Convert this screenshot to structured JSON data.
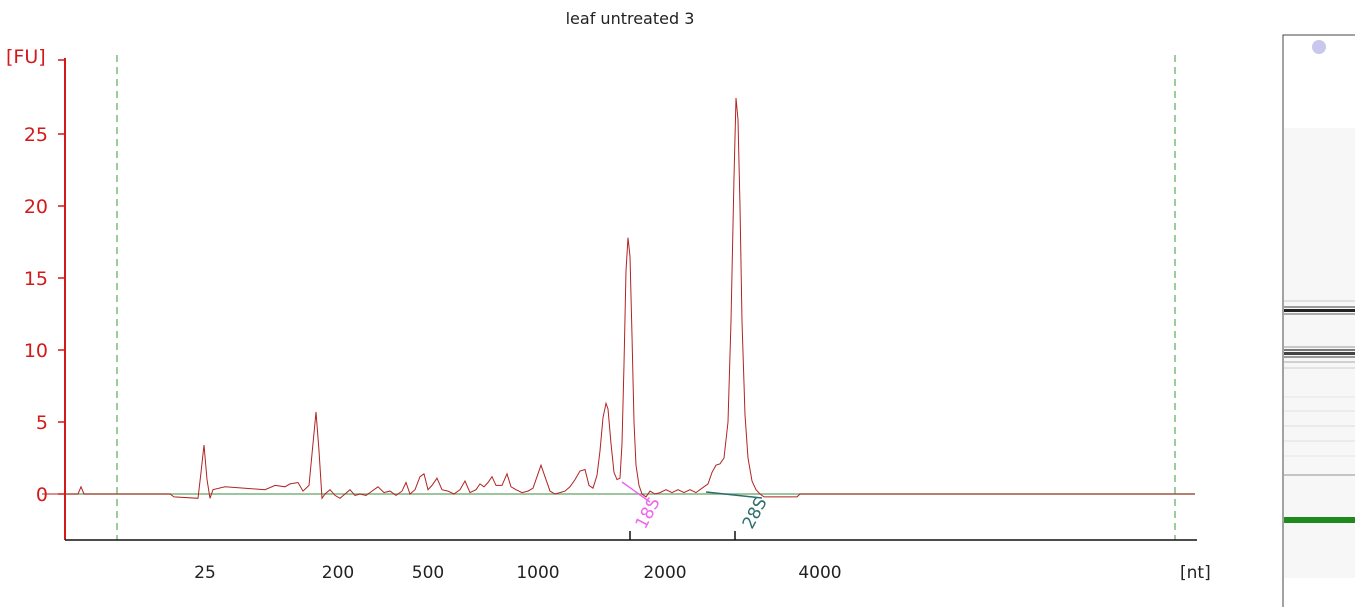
{
  "chart_data": {
    "type": "line",
    "title": "leaf untreated 3",
    "ylabel": "[FU]",
    "xlabel": "[nt]",
    "ylim": [
      -3.5,
      30
    ],
    "yticks": [
      0,
      5,
      10,
      15,
      20,
      25
    ],
    "xticks": [
      {
        "label": "25",
        "pos": 205
      },
      {
        "label": "200",
        "pos": 338
      },
      {
        "label": "500",
        "pos": 428
      },
      {
        "label": "1000",
        "pos": 538
      },
      {
        "label": "2000",
        "pos": 665
      },
      {
        "label": "4000",
        "pos": 820
      }
    ],
    "markers": [
      {
        "label": "18S",
        "color": "#ee66ee"
      },
      {
        "label": "28S",
        "color": "#2e6e6e"
      }
    ],
    "colors": {
      "axis": "#d21a1a",
      "trace": "#b22222",
      "baseline": "#7fb37f",
      "boundary": "#3a9a3a",
      "s18": "#ee66ee",
      "s28": "#2e6e6e"
    },
    "series": [
      {
        "values": [
          [
            42,
            0
          ],
          [
            78,
            0
          ],
          [
            81,
            0.5
          ],
          [
            84,
            0
          ],
          [
            170,
            0
          ],
          [
            174,
            -0.2
          ],
          [
            198,
            -0.3
          ],
          [
            201,
            1.5
          ],
          [
            204,
            3.4
          ],
          [
            207,
            1.0
          ],
          [
            210,
            -0.3
          ],
          [
            213,
            0.3
          ],
          [
            225,
            0.5
          ],
          [
            245,
            0.4
          ],
          [
            265,
            0.3
          ],
          [
            275,
            0.6
          ],
          [
            285,
            0.5
          ],
          [
            290,
            0.7
          ],
          [
            298,
            0.8
          ],
          [
            303,
            0.2
          ],
          [
            309,
            0.6
          ],
          [
            313,
            3.5
          ],
          [
            316,
            5.7
          ],
          [
            319,
            3.0
          ],
          [
            322,
            -0.3
          ],
          [
            325,
            0.0
          ],
          [
            330,
            0.3
          ],
          [
            335,
            -0.1
          ],
          [
            340,
            -0.3
          ],
          [
            345,
            0.0
          ],
          [
            350,
            0.3
          ],
          [
            355,
            -0.1
          ],
          [
            360,
            0.0
          ],
          [
            366,
            -0.1
          ],
          [
            372,
            0.2
          ],
          [
            378,
            0.5
          ],
          [
            384,
            0.1
          ],
          [
            390,
            0.2
          ],
          [
            396,
            -0.1
          ],
          [
            402,
            0.2
          ],
          [
            406,
            0.8
          ],
          [
            410,
            0.0
          ],
          [
            415,
            0.3
          ],
          [
            420,
            1.2
          ],
          [
            424,
            1.4
          ],
          [
            428,
            0.3
          ],
          [
            432,
            0.6
          ],
          [
            437,
            1.1
          ],
          [
            442,
            0.3
          ],
          [
            448,
            0.2
          ],
          [
            454,
            0.0
          ],
          [
            460,
            0.3
          ],
          [
            465,
            0.9
          ],
          [
            470,
            0.1
          ],
          [
            476,
            0.3
          ],
          [
            480,
            0.7
          ],
          [
            484,
            0.5
          ],
          [
            488,
            0.8
          ],
          [
            492,
            1.2
          ],
          [
            496,
            0.6
          ],
          [
            502,
            0.6
          ],
          [
            507,
            1.4
          ],
          [
            511,
            0.5
          ],
          [
            516,
            0.3
          ],
          [
            522,
            0.1
          ],
          [
            528,
            0.2
          ],
          [
            533,
            0.4
          ],
          [
            537,
            1.2
          ],
          [
            541,
            2.0
          ],
          [
            545,
            1.2
          ],
          [
            550,
            0.2
          ],
          [
            555,
            0.0
          ],
          [
            560,
            0.1
          ],
          [
            565,
            0.2
          ],
          [
            570,
            0.5
          ],
          [
            575,
            1.0
          ],
          [
            580,
            1.6
          ],
          [
            585,
            1.7
          ],
          [
            589,
            0.6
          ],
          [
            593,
            0.4
          ],
          [
            597,
            1.3
          ],
          [
            600,
            3.0
          ],
          [
            603,
            5.3
          ],
          [
            606,
            6.3
          ],
          [
            608,
            5.9
          ],
          [
            611,
            3.5
          ],
          [
            614,
            1.5
          ],
          [
            617,
            1.0
          ],
          [
            620,
            1.1
          ],
          [
            622,
            3.5
          ],
          [
            624,
            9.0
          ],
          [
            626,
            15.5
          ],
          [
            628,
            17.8
          ],
          [
            630,
            16.5
          ],
          [
            632,
            11.0
          ],
          [
            634,
            5.0
          ],
          [
            636,
            2.0
          ],
          [
            639,
            0.6
          ],
          [
            642,
            0.0
          ],
          [
            646,
            -0.2
          ],
          [
            650,
            0.2
          ],
          [
            655,
            0.0
          ],
          [
            660,
            0.1
          ],
          [
            666,
            0.3
          ],
          [
            672,
            0.1
          ],
          [
            678,
            0.3
          ],
          [
            684,
            0.1
          ],
          [
            690,
            0.3
          ],
          [
            696,
            0.1
          ],
          [
            702,
            0.4
          ],
          [
            708,
            0.7
          ],
          [
            712,
            1.5
          ],
          [
            716,
            2.0
          ],
          [
            720,
            2.1
          ],
          [
            724,
            2.5
          ],
          [
            728,
            5.0
          ],
          [
            731,
            12.0
          ],
          [
            734,
            22.0
          ],
          [
            736,
            27.5
          ],
          [
            738,
            26.0
          ],
          [
            740,
            20.0
          ],
          [
            742,
            12.0
          ],
          [
            745,
            5.5
          ],
          [
            748,
            2.5
          ],
          [
            752,
            0.9
          ],
          [
            756,
            0.3
          ],
          [
            760,
            0.0
          ],
          [
            764,
            -0.2
          ],
          [
            772,
            -0.2
          ],
          [
            780,
            -0.2
          ],
          [
            790,
            -0.2
          ],
          [
            797,
            -0.2
          ],
          [
            800,
            0
          ],
          [
            1195,
            0
          ]
        ]
      }
    ]
  }
}
